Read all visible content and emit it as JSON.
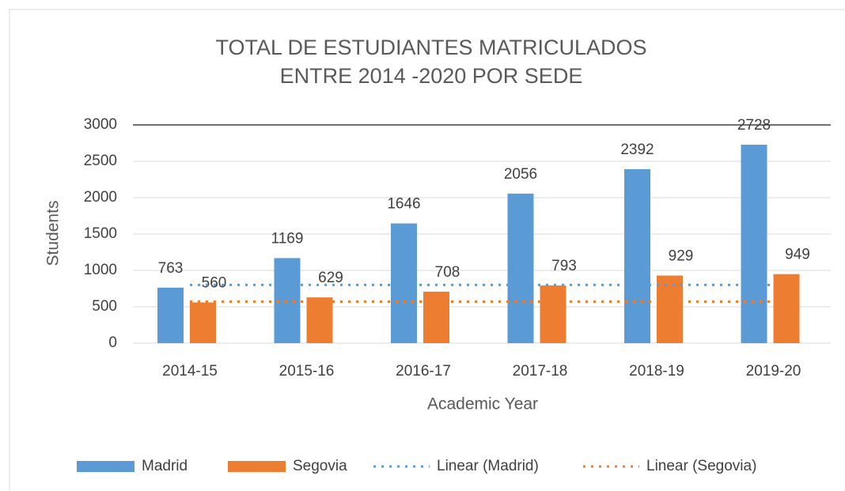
{
  "chart_data": {
    "type": "bar",
    "title": [
      "TOTAL DE ESTUDIANTES MATRICULADOS",
      "ENTRE 2014 -2020 POR SEDE"
    ],
    "x_label": "Academic Year",
    "y_label": "Students",
    "categories": [
      "2014-15",
      "2015-16",
      "2016-17",
      "2017-18",
      "2018-19",
      "2019-20"
    ],
    "series": [
      {
        "name": "Madrid",
        "color": "#5b9bd5",
        "values": [
          763,
          1169,
          1646,
          2056,
          2392,
          2728
        ]
      },
      {
        "name": "Segovia",
        "color": "#ed7d31",
        "values": [
          560,
          629,
          708,
          793,
          929,
          949
        ]
      },
      {
        "name": "Linear (Madrid)",
        "type": "line",
        "style": "dotted",
        "color": "#5b9bd5",
        "values": [
          800,
          800,
          800,
          800,
          800,
          800
        ]
      },
      {
        "name": "Linear (Segovia)",
        "type": "line",
        "style": "dotted",
        "color": "#ed7d31",
        "values": [
          570,
          570,
          570,
          570,
          570,
          570
        ]
      }
    ],
    "ylim": [
      0,
      3000
    ],
    "yticks": [
      0,
      500,
      1000,
      1500,
      2000,
      2500,
      3000
    ],
    "grid": true,
    "legend": "bottom"
  }
}
